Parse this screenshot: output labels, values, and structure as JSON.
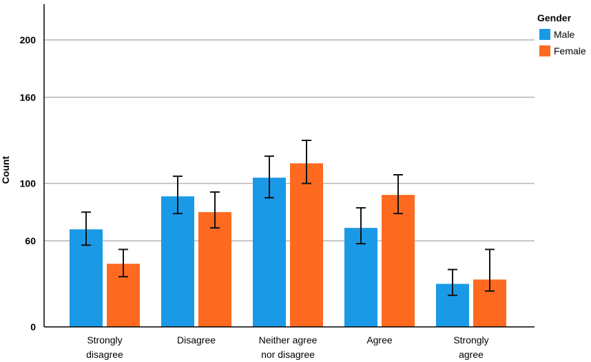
{
  "chart_data": {
    "type": "bar",
    "title": "",
    "xlabel": "",
    "ylabel": "Count",
    "ylim": [
      0,
      224
    ],
    "yticks": [
      {
        "value": 0,
        "label": "0"
      },
      {
        "value": 60,
        "label": "60"
      },
      {
        "value": 100,
        "label": "100"
      },
      {
        "value": 160,
        "label": "160"
      },
      {
        "value": 200,
        "label": "200"
      }
    ],
    "grid": true,
    "categories": [
      [
        "Strongly",
        "disagree"
      ],
      [
        "Disagree"
      ],
      [
        "Neither agree",
        "nor disagree"
      ],
      [
        "Agree"
      ],
      [
        "Strongly",
        "agree"
      ]
    ],
    "legend": {
      "title": "Gender",
      "position": "top-right"
    },
    "series": [
      {
        "name": "Male",
        "color": "#1a9ae6",
        "values": [
          68,
          91,
          104,
          69,
          30
        ],
        "error_low": [
          57,
          79,
          90,
          58,
          22
        ],
        "error_high": [
          80,
          105,
          119,
          83,
          40
        ]
      },
      {
        "name": "Female",
        "color": "#ff6a21",
        "values": [
          44,
          80,
          114,
          92,
          33
        ],
        "error_low": [
          35,
          69,
          100,
          79,
          25
        ],
        "error_high": [
          54,
          94,
          130,
          106,
          54
        ]
      }
    ]
  }
}
